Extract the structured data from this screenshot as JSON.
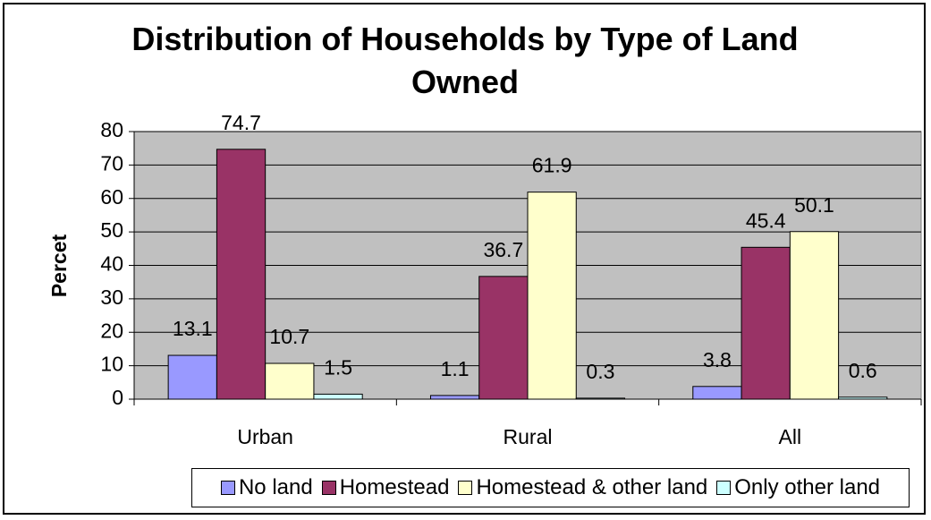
{
  "chart_data": {
    "type": "bar",
    "title": "Distribution of Households by Type of Land Owned",
    "y_label": "Percet",
    "categories": [
      "Urban",
      "Rural",
      "All"
    ],
    "series": [
      {
        "name": "No land",
        "color": "#9999ff",
        "values": [
          13.1,
          1.1,
          3.8
        ]
      },
      {
        "name": "Homestead",
        "color": "#993366",
        "values": [
          74.7,
          36.7,
          45.4
        ]
      },
      {
        "name": "Homestead & other land",
        "color": "#ffffcc",
        "values": [
          10.7,
          61.9,
          50.1
        ]
      },
      {
        "name": "Only other land",
        "color": "#ccffff",
        "values": [
          1.5,
          0.3,
          0.6
        ]
      }
    ],
    "ylim": [
      0,
      80
    ],
    "yticks": [
      0,
      10,
      20,
      30,
      40,
      50,
      60,
      70,
      80
    ],
    "grid": true,
    "plot_background": "#c0c0c0",
    "legend": "bottom"
  }
}
